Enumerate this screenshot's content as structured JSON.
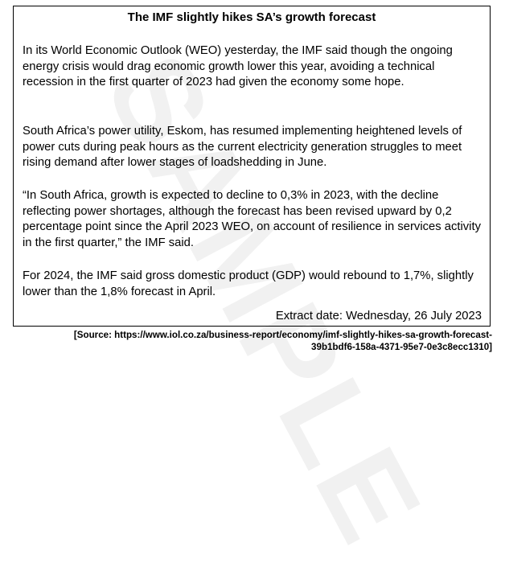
{
  "watermark": "SAMPLE",
  "article": {
    "title": "The IMF slightly hikes SA’s growth forecast",
    "paragraphs": [
      "In its World Economic Outlook (WEO) yesterday, the IMF said though the ongoing energy crisis would drag economic growth lower this year, avoiding a technical recession in the first quarter of 2023 had given the economy some hope.",
      "South Africa’s power utility, Eskom, has resumed implementing heightened levels of power cuts during peak hours as the current electricity generation struggles to meet rising demand after lower stages of loadshedding in June.",
      "“In South Africa, growth is expected to decline to 0,3% in 2023, with the decline reflecting power shortages, although the forecast has been revised upward by 0,2 percentage point since the April 2023 WEO, on account of resilience in services activity in the first quarter,” the IMF said.",
      "For 2024, the IMF said gross domestic product (GDP) would rebound to 1,7%, slightly lower than the 1,8% forecast in April."
    ],
    "extract_date": "Extract date: Wednesday, 26 July 2023"
  },
  "source": "[Source:  https://www.iol.co.za/business-report/economy/imf-slightly-hikes-sa-growth-forecast-39b1bdf6-158a-4371-95e7-0e3c8ecc1310]"
}
